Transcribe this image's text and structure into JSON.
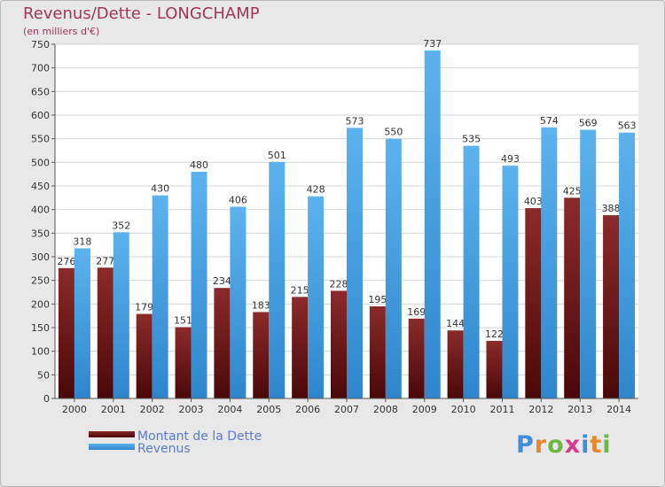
{
  "chart_data": {
    "type": "bar",
    "title": "Revenus/Dette - LONGCHAMP",
    "subtitle": "(en milliers d'€)",
    "categories": [
      "2000",
      "2001",
      "2002",
      "2003",
      "2004",
      "2005",
      "2006",
      "2007",
      "2008",
      "2009",
      "2010",
      "2011",
      "2012",
      "2013",
      "2014"
    ],
    "series": [
      {
        "name": "Montant de la Dette",
        "color": "#7a1f1f",
        "values": [
          276,
          277,
          179,
          151,
          234,
          183,
          215,
          228,
          195,
          169,
          144,
          122,
          403,
          425,
          388
        ]
      },
      {
        "name": "Revenus",
        "color": "#4ea6e6",
        "values": [
          318,
          352,
          430,
          480,
          406,
          501,
          428,
          573,
          550,
          737,
          535,
          493,
          574,
          569,
          563
        ]
      }
    ],
    "ylim": [
      0,
      750
    ],
    "yticks": [
      0,
      50,
      100,
      150,
      200,
      250,
      300,
      350,
      400,
      450,
      500,
      550,
      600,
      650,
      700,
      750
    ],
    "grid": true,
    "legend_position": "bottom-left"
  },
  "logo_text": "Proxiti"
}
